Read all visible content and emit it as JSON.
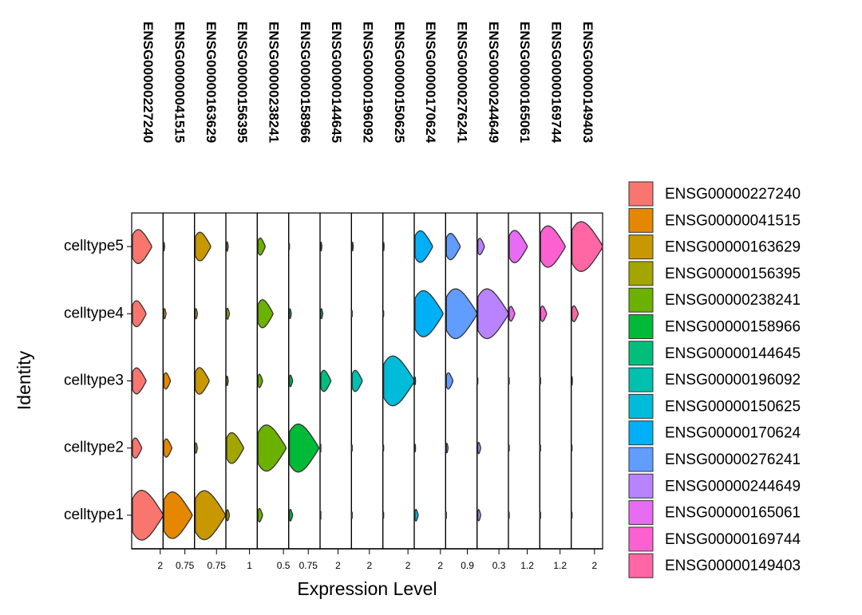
{
  "chart_data": {
    "type": "violin",
    "y_label": "Identity",
    "x_label": "Expression Level",
    "categories": [
      "celltype5",
      "celltype4",
      "celltype3",
      "celltype2",
      "celltype1"
    ],
    "series": [
      {
        "name": "ENSG00000227240",
        "color": "#F8766D",
        "xlim": [
          0,
          2.2
        ],
        "xticks": [
          2
        ],
        "values": [
          1.4,
          1.0,
          1.0,
          0.7,
          2.2
        ]
      },
      {
        "name": "ENSG00000041515",
        "color": "#E58700",
        "xlim": [
          0,
          1.08
        ],
        "xticks": [
          0.75
        ],
        "values": [
          0.05,
          0.1,
          0.25,
          0.3,
          1.0
        ]
      },
      {
        "name": "ENSG00000163629",
        "color": "#C99800",
        "xlim": [
          0,
          1.07
        ],
        "xticks": [
          0.75
        ],
        "values": [
          0.55,
          0.1,
          0.5,
          0.1,
          1.05
        ]
      },
      {
        "name": "ENSG00000156395",
        "color": "#A3A500",
        "xlim": [
          0,
          1.33
        ],
        "xticks": [
          1
        ],
        "values": [
          0.1,
          0.15,
          0.1,
          0.75,
          0.15
        ]
      },
      {
        "name": "ENSG00000238241",
        "color": "#6BB100",
        "xlim": [
          0,
          0.6
        ],
        "xticks": [
          0.5
        ],
        "values": [
          0.15,
          0.3,
          0.1,
          0.55,
          0.1
        ]
      },
      {
        "name": "ENSG00000158966",
        "color": "#00BA38",
        "xlim": [
          0,
          1.2
        ],
        "xticks": [
          0.75
        ],
        "values": [
          0,
          0.1,
          0.15,
          1.15,
          0.15
        ]
      },
      {
        "name": "ENSG00000144645",
        "color": "#00BF7D",
        "xlim": [
          0,
          3.5
        ],
        "xticks": [
          2
        ],
        "values": [
          0.2,
          0.3,
          1.2,
          0.05,
          0.05
        ]
      },
      {
        "name": "ENSG00000196092",
        "color": "#00C0AF",
        "xlim": [
          0,
          3.5
        ],
        "xticks": [
          2
        ],
        "values": [
          0.2,
          0,
          1.2,
          0,
          0
        ]
      },
      {
        "name": "ENSG00000150625",
        "color": "#00BCD8",
        "xlim": [
          0,
          2.5
        ],
        "xticks": [
          2
        ],
        "values": [
          0.1,
          0,
          2.5,
          0,
          0
        ]
      },
      {
        "name": "ENSG00000170624",
        "color": "#00B0F6",
        "xlim": [
          0,
          2.4
        ],
        "xticks": [
          2
        ],
        "values": [
          1.4,
          2.2,
          0.1,
          0.1,
          0.3
        ]
      },
      {
        "name": "ENSG00000276241",
        "color": "#619CFF",
        "xlim": [
          0,
          1.3
        ],
        "xticks": [
          0.9
        ],
        "values": [
          0.6,
          1.3,
          0.3,
          0.1,
          0
        ]
      },
      {
        "name": "ENSG00000244649",
        "color": "#B983FF",
        "xlim": [
          0,
          0.43
        ],
        "xticks": [
          0.3
        ],
        "values": [
          0.1,
          0.43,
          0,
          0.05,
          0.05
        ]
      },
      {
        "name": "ENSG00000165061",
        "color": "#E76BF3",
        "xlim": [
          0,
          2.0
        ],
        "xticks": [
          1.2
        ],
        "values": [
          1.2,
          0.4,
          0,
          0,
          0
        ]
      },
      {
        "name": "ENSG00000169744",
        "color": "#FD61D1",
        "xlim": [
          0,
          1.86
        ],
        "xticks": [
          1.2
        ],
        "values": [
          1.5,
          0.4,
          0,
          0,
          0
        ]
      },
      {
        "name": "ENSG00000149403",
        "color": "#FF67A4",
        "xlim": [
          0,
          2.7
        ],
        "xticks": [
          2
        ],
        "values": [
          2.7,
          0.6,
          0.1,
          0,
          0
        ]
      }
    ]
  }
}
